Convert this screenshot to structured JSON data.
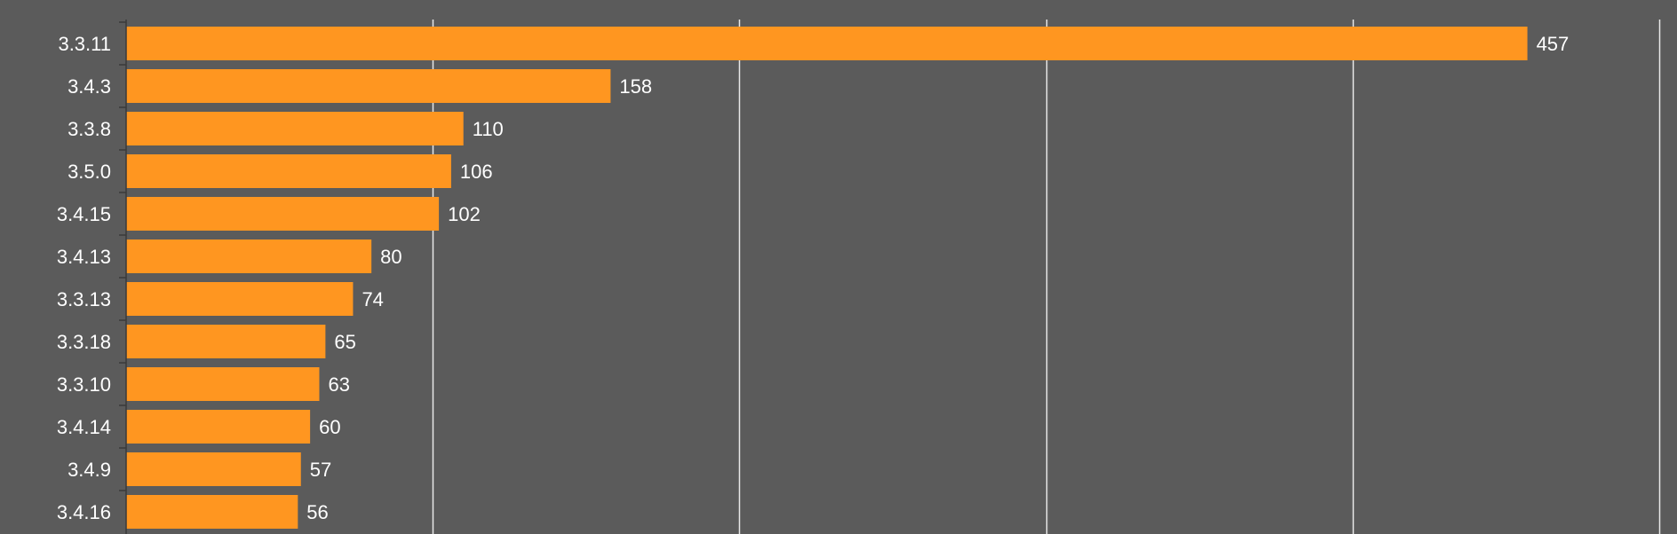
{
  "chart_data": {
    "type": "bar",
    "orientation": "horizontal",
    "title": "",
    "xlabel": "",
    "ylabel": "",
    "categories": [
      "3.3.11",
      "3.4.3",
      "3.3.8",
      "3.5.0",
      "3.4.15",
      "3.4.13",
      "3.3.13",
      "3.3.18",
      "3.3.10",
      "3.4.14",
      "3.4.9",
      "3.4.16"
    ],
    "values": [
      457,
      158,
      110,
      106,
      102,
      80,
      74,
      65,
      63,
      60,
      57,
      56
    ],
    "value_labels": [
      "457",
      "158",
      "110",
      "106",
      "102",
      "80",
      "74",
      "65",
      "63",
      "60",
      "57",
      "56"
    ],
    "xlim": [
      0,
      500
    ],
    "x_gridlines": [
      0,
      100,
      200,
      300,
      400,
      500
    ],
    "grid": true,
    "legend": "none",
    "colors": {
      "background": "#5b5b5b",
      "bar": "#ff9620",
      "gridline": "#e8e8e8",
      "text": "#ffffff"
    }
  }
}
